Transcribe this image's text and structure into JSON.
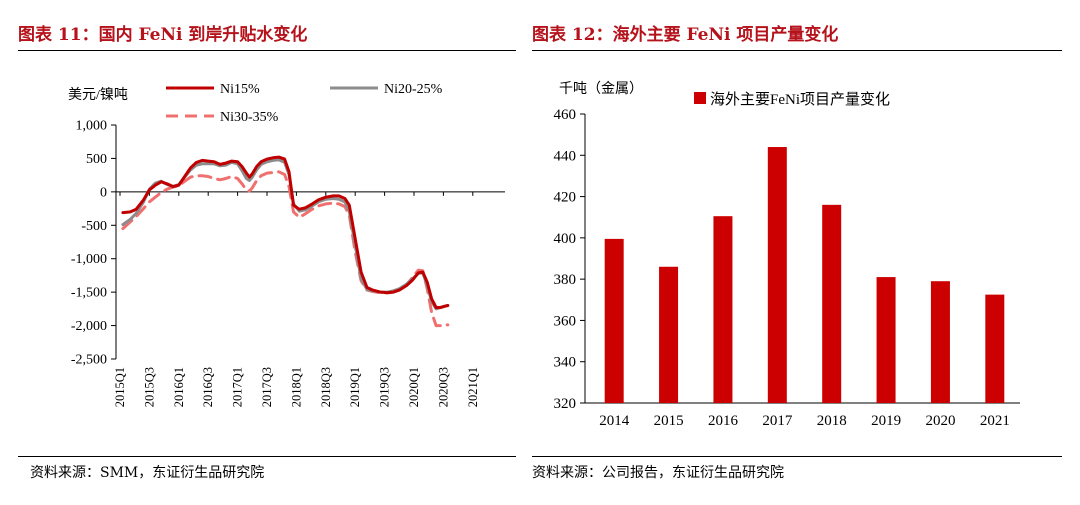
{
  "left": {
    "title": "图表 11：国内 FeNi 到岸升贴水变化",
    "source": "资料来源：SMM，东证衍生品研究院"
  },
  "right": {
    "title": "图表 12：海外主要 FeNi 项目产量变化",
    "source": "资料来源：公司报告，东证衍生品研究院"
  },
  "colors": {
    "title": "#b5121b",
    "ni15": "#c00000",
    "ni20": "#8c8c8c",
    "ni30": "#f07070",
    "bar": "#cc0000"
  },
  "chart_data": [
    {
      "type": "line",
      "ylabel": "美元/镍吨",
      "ylim": [
        -2500,
        1000
      ],
      "yticks": [
        1000,
        500,
        0,
        -500,
        -1000,
        -1500,
        -2000,
        -2500
      ],
      "ytick_labels": [
        "1,000",
        "500",
        "0",
        "-500",
        "-1,000",
        "-1,500",
        "-2,000",
        "-2,500"
      ],
      "xtick_labels": [
        "2015Q1",
        "2015Q3",
        "2016Q1",
        "2016Q3",
        "2017Q1",
        "2017Q3",
        "2018Q1",
        "2018Q3",
        "2019Q1",
        "2019Q3",
        "2020Q1",
        "2020Q3",
        "2021Q1"
      ],
      "x_range_quarters": [
        0,
        25
      ],
      "legend": "top",
      "series": [
        {
          "name": "Ni15%",
          "style": "solid",
          "points": [
            [
              0.2,
              -310
            ],
            [
              0.7,
              -300
            ],
            [
              1.1,
              -260
            ],
            [
              1.6,
              -120
            ],
            [
              2.0,
              30
            ],
            [
              2.4,
              100
            ],
            [
              2.8,
              150
            ],
            [
              3.2,
              120
            ],
            [
              3.6,
              80
            ],
            [
              4.0,
              100
            ],
            [
              4.4,
              230
            ],
            [
              4.8,
              360
            ],
            [
              5.2,
              440
            ],
            [
              5.6,
              470
            ],
            [
              6.0,
              460
            ],
            [
              6.4,
              450
            ],
            [
              6.8,
              410
            ],
            [
              7.2,
              430
            ],
            [
              7.6,
              460
            ],
            [
              8.0,
              450
            ],
            [
              8.3,
              380
            ],
            [
              8.6,
              280
            ],
            [
              8.8,
              220
            ],
            [
              9.0,
              270
            ],
            [
              9.3,
              380
            ],
            [
              9.6,
              450
            ],
            [
              10.0,
              490
            ],
            [
              10.4,
              510
            ],
            [
              10.8,
              520
            ],
            [
              11.2,
              490
            ],
            [
              11.5,
              300
            ],
            [
              11.8,
              -200
            ],
            [
              12.2,
              -260
            ],
            [
              12.6,
              -240
            ],
            [
              13.0,
              -190
            ],
            [
              13.5,
              -120
            ],
            [
              14.0,
              -80
            ],
            [
              14.5,
              -60
            ],
            [
              14.9,
              -60
            ],
            [
              15.3,
              -100
            ],
            [
              15.6,
              -200
            ],
            [
              16.0,
              -700
            ],
            [
              16.4,
              -1200
            ],
            [
              16.8,
              -1430
            ],
            [
              17.2,
              -1470
            ],
            [
              17.7,
              -1500
            ],
            [
              18.2,
              -1510
            ],
            [
              18.6,
              -1500
            ],
            [
              19.0,
              -1470
            ],
            [
              19.5,
              -1400
            ],
            [
              19.9,
              -1320
            ],
            [
              20.3,
              -1210
            ],
            [
              20.6,
              -1200
            ],
            [
              20.9,
              -1350
            ],
            [
              21.2,
              -1600
            ],
            [
              21.5,
              -1730
            ],
            [
              21.8,
              -1730
            ],
            [
              22.1,
              -1710
            ],
            [
              22.3,
              -1700
            ]
          ]
        },
        {
          "name": "Ni20-25%",
          "style": "solid",
          "points": [
            [
              0.2,
              -490
            ],
            [
              0.7,
              -410
            ],
            [
              1.1,
              -320
            ],
            [
              1.6,
              -150
            ],
            [
              2.0,
              40
            ],
            [
              2.4,
              130
            ],
            [
              2.8,
              160
            ],
            [
              3.2,
              110
            ],
            [
              3.6,
              80
            ],
            [
              4.0,
              110
            ],
            [
              4.4,
              220
            ],
            [
              4.8,
              330
            ],
            [
              5.2,
              400
            ],
            [
              5.6,
              420
            ],
            [
              6.0,
              420
            ],
            [
              6.4,
              420
            ],
            [
              6.8,
              390
            ],
            [
              7.2,
              400
            ],
            [
              7.6,
              440
            ],
            [
              8.0,
              420
            ],
            [
              8.3,
              320
            ],
            [
              8.6,
              200
            ],
            [
              8.8,
              170
            ],
            [
              9.0,
              220
            ],
            [
              9.3,
              330
            ],
            [
              9.6,
              410
            ],
            [
              10.0,
              450
            ],
            [
              10.4,
              470
            ],
            [
              10.8,
              480
            ],
            [
              11.2,
              440
            ],
            [
              11.5,
              260
            ],
            [
              11.8,
              -180
            ],
            [
              12.2,
              -290
            ],
            [
              12.6,
              -270
            ],
            [
              13.0,
              -220
            ],
            [
              13.5,
              -150
            ],
            [
              14.0,
              -110
            ],
            [
              14.5,
              -100
            ],
            [
              14.9,
              -110
            ],
            [
              15.3,
              -150
            ],
            [
              15.6,
              -290
            ],
            [
              16.0,
              -800
            ],
            [
              16.4,
              -1300
            ],
            [
              16.8,
              -1460
            ],
            [
              17.2,
              -1480
            ],
            [
              17.7,
              -1500
            ],
            [
              18.2,
              -1500
            ],
            [
              18.6,
              -1480
            ],
            [
              19.0,
              -1450
            ],
            [
              19.5,
              -1380
            ],
            [
              19.9,
              -1300
            ],
            [
              20.3,
              -1220
            ],
            [
              20.6,
              -1210
            ],
            [
              20.9,
              -1400
            ],
            [
              21.2,
              -1640
            ],
            [
              21.5,
              -1750
            ],
            [
              21.8,
              -1730
            ],
            [
              22.1,
              -1710
            ],
            [
              22.3,
              -1700
            ]
          ]
        },
        {
          "name": "Ni30-35%",
          "style": "dashed",
          "points": [
            [
              0.2,
              -550
            ],
            [
              0.7,
              -450
            ],
            [
              1.1,
              -370
            ],
            [
              1.6,
              -250
            ],
            [
              2.0,
              -150
            ],
            [
              2.4,
              -80
            ],
            [
              2.8,
              -10
            ],
            [
              3.2,
              40
            ],
            [
              3.6,
              70
            ],
            [
              4.0,
              90
            ],
            [
              4.4,
              160
            ],
            [
              4.8,
              220
            ],
            [
              5.2,
              240
            ],
            [
              5.6,
              240
            ],
            [
              6.0,
              230
            ],
            [
              6.4,
              200
            ],
            [
              6.8,
              180
            ],
            [
              7.2,
              200
            ],
            [
              7.6,
              230
            ],
            [
              8.0,
              200
            ],
            [
              8.3,
              120
            ],
            [
              8.6,
              30
            ],
            [
              8.8,
              10
            ],
            [
              9.0,
              60
            ],
            [
              9.3,
              170
            ],
            [
              9.6,
              240
            ],
            [
              10.0,
              280
            ],
            [
              10.4,
              290
            ],
            [
              10.8,
              300
            ],
            [
              11.2,
              260
            ],
            [
              11.5,
              80
            ],
            [
              11.8,
              -300
            ],
            [
              12.2,
              -380
            ],
            [
              12.6,
              -330
            ],
            [
              13.0,
              -270
            ],
            [
              13.5,
              -210
            ],
            [
              14.0,
              -180
            ],
            [
              14.5,
              -170
            ],
            [
              14.9,
              -180
            ],
            [
              15.3,
              -220
            ],
            [
              15.6,
              -350
            ],
            [
              16.0,
              -900
            ],
            [
              16.4,
              -1330
            ],
            [
              16.8,
              -1470
            ],
            [
              17.2,
              -1490
            ],
            [
              17.7,
              -1510
            ],
            [
              18.2,
              -1510
            ],
            [
              18.6,
              -1490
            ],
            [
              19.0,
              -1460
            ],
            [
              19.5,
              -1390
            ],
            [
              19.9,
              -1280
            ],
            [
              20.3,
              -1170
            ],
            [
              20.6,
              -1180
            ],
            [
              20.9,
              -1450
            ],
            [
              21.2,
              -1800
            ],
            [
              21.5,
              -2000
            ],
            [
              21.8,
              -2000
            ],
            [
              22.1,
              -1990
            ],
            [
              22.3,
              -1990
            ]
          ]
        }
      ]
    },
    {
      "type": "bar",
      "ylabel": "千吨（金属）",
      "ylim": [
        320,
        460
      ],
      "yticks": [
        460,
        440,
        420,
        400,
        380,
        360,
        340,
        320
      ],
      "categories": [
        "2014",
        "2015",
        "2016",
        "2017",
        "2018",
        "2019",
        "2020",
        "2021"
      ],
      "series": [
        {
          "name": "海外主要FeNi项目产量变化",
          "values": [
            399.5,
            386,
            410.5,
            444,
            416,
            381,
            379,
            372.5
          ]
        }
      ],
      "legend": "top"
    }
  ]
}
